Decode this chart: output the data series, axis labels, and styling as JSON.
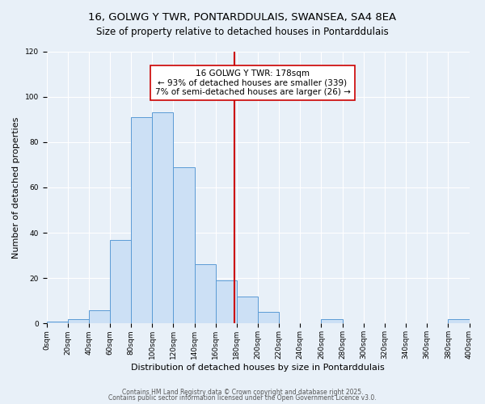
{
  "title": "16, GOLWG Y TWR, PONTARDDULAIS, SWANSEA, SA4 8EA",
  "subtitle": "Size of property relative to detached houses in Pontarddulais",
  "xlabel": "Distribution of detached houses by size in Pontarddulais",
  "ylabel": "Number of detached properties",
  "bar_heights": [
    1,
    2,
    6,
    37,
    91,
    93,
    69,
    26,
    19,
    12,
    5,
    0,
    0,
    2,
    0,
    0,
    0,
    0,
    0,
    2
  ],
  "bin_edges": [
    0,
    20,
    40,
    60,
    80,
    100,
    120,
    140,
    160,
    180,
    200,
    220,
    240,
    260,
    280,
    300,
    320,
    340,
    360,
    380,
    400
  ],
  "bar_color": "#cce0f5",
  "bar_edgecolor": "#5b9bd5",
  "vline_x": 178,
  "vline_color": "#cc0000",
  "annotation_title": "16 GOLWG Y TWR: 178sqm",
  "annotation_line1": "← 93% of detached houses are smaller (339)",
  "annotation_line2": "7% of semi-detached houses are larger (26) →",
  "annotation_box_color": "#ffffff",
  "annotation_box_edgecolor": "#cc0000",
  "ylim": [
    0,
    120
  ],
  "yticks": [
    0,
    20,
    40,
    60,
    80,
    100,
    120
  ],
  "xtick_labels": [
    "0sqm",
    "20sqm",
    "40sqm",
    "60sqm",
    "80sqm",
    "100sqm",
    "120sqm",
    "140sqm",
    "160sqm",
    "180sqm",
    "200sqm",
    "220sqm",
    "240sqm",
    "260sqm",
    "280sqm",
    "300sqm",
    "320sqm",
    "340sqm",
    "360sqm",
    "380sqm",
    "400sqm"
  ],
  "background_color": "#e8f0f8",
  "grid_color": "#ffffff",
  "footer1": "Contains HM Land Registry data © Crown copyright and database right 2025.",
  "footer2": "Contains public sector information licensed under the Open Government Licence v3.0.",
  "title_fontsize": 9.5,
  "subtitle_fontsize": 8.5,
  "label_fontsize": 8,
  "tick_fontsize": 6.5,
  "annotation_fontsize": 7.5
}
